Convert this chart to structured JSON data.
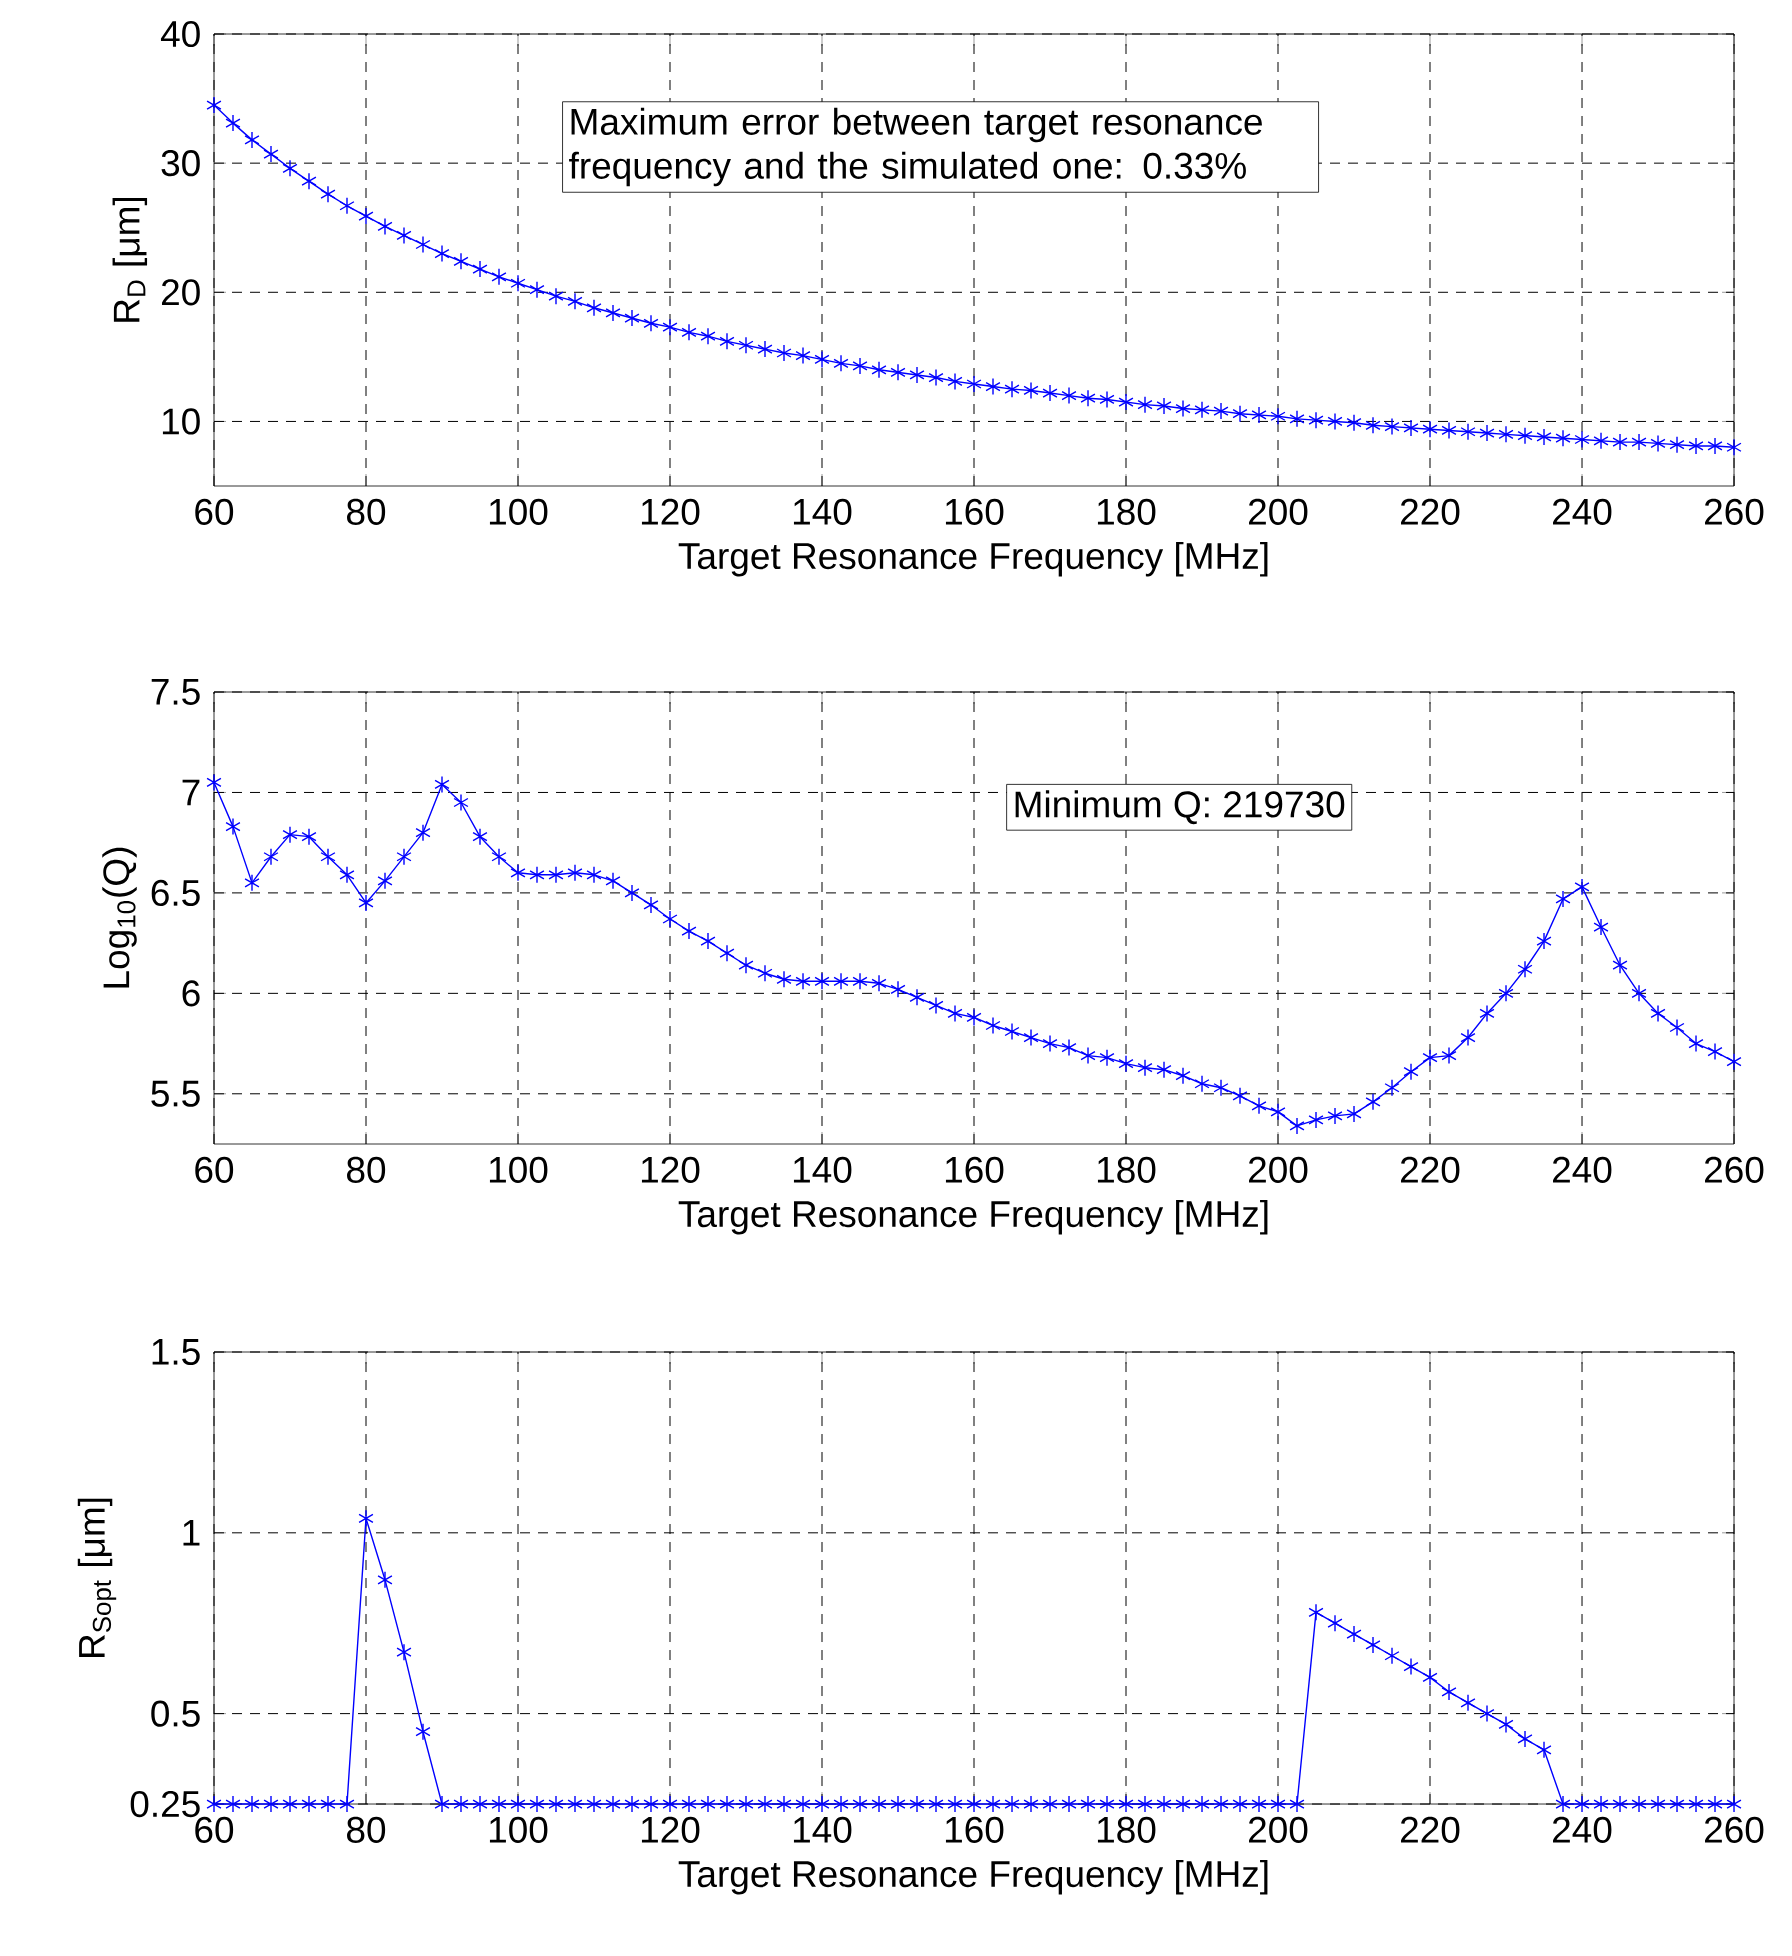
{
  "chart_data": [
    {
      "type": "line",
      "ylabel": "R$_{D}$ [μm]",
      "xlabel": "Target Resonance Frequency [MHz]",
      "annotations": [
        "Maximum error between target resonance frequency and the simulated one: 0.33%"
      ],
      "xlim": [
        60,
        260
      ],
      "xticks": [
        60,
        80,
        100,
        120,
        140,
        160,
        180,
        200,
        220,
        240,
        260
      ],
      "ylim": [
        5,
        40
      ],
      "yticks": [
        10,
        20,
        30,
        40
      ],
      "grid": true,
      "marker": "cross",
      "line_style": "solid",
      "x": [
        60,
        62.5,
        65,
        67.5,
        70,
        72.5,
        75,
        77.5,
        80,
        82.5,
        85,
        87.5,
        90,
        92.5,
        95,
        97.5,
        100,
        102.5,
        105,
        107.5,
        110,
        112.5,
        115,
        117.5,
        120,
        122.5,
        125,
        127.5,
        130,
        132.5,
        135,
        137.5,
        140,
        142.5,
        145,
        147.5,
        150,
        152.5,
        155,
        157.5,
        160,
        162.5,
        165,
        167.5,
        170,
        172.5,
        175,
        177.5,
        180,
        182.5,
        185,
        187.5,
        190,
        192.5,
        195,
        197.5,
        200,
        202.5,
        205,
        207.5,
        210,
        212.5,
        215,
        217.5,
        220,
        222.5,
        225,
        227.5,
        230,
        232.5,
        235,
        237.5,
        240,
        242.5,
        245,
        247.5,
        250,
        252.5,
        255,
        257.5,
        260
      ],
      "series": [
        {
          "color": "#0000ff",
          "values": [
            34.5,
            33.1,
            31.8,
            30.7,
            29.6,
            28.6,
            27.6,
            26.7,
            25.9,
            25.1,
            24.4,
            23.7,
            23.0,
            22.4,
            21.8,
            21.2,
            20.7,
            20.2,
            19.7,
            19.3,
            18.8,
            18.4,
            18.0,
            17.6,
            17.3,
            16.9,
            16.6,
            16.2,
            15.9,
            15.6,
            15.3,
            15.1,
            14.8,
            14.5,
            14.3,
            14.0,
            13.8,
            13.6,
            13.4,
            13.1,
            12.9,
            12.7,
            12.5,
            12.4,
            12.2,
            12.0,
            11.8,
            11.7,
            11.5,
            11.3,
            11.2,
            11.0,
            10.9,
            10.8,
            10.6,
            10.5,
            10.4,
            10.2,
            10.1,
            10.0,
            9.9,
            9.7,
            9.6,
            9.5,
            9.4,
            9.3,
            9.2,
            9.1,
            9.0,
            8.9,
            8.8,
            8.7,
            8.6,
            8.5,
            8.4,
            8.4,
            8.3,
            8.2,
            8.1,
            8.1,
            8.0
          ]
        }
      ]
    },
    {
      "type": "line",
      "ylabel": "Log$_{10}$(Q)",
      "xlabel": "Target Resonance Frequency [MHz]",
      "annotations": [
        "Minimum Q: 219730"
      ],
      "xlim": [
        60,
        260
      ],
      "xticks": [
        60,
        80,
        100,
        120,
        140,
        160,
        180,
        200,
        220,
        240,
        260
      ],
      "ylim": [
        5.25,
        7.5
      ],
      "yticks": [
        5.5,
        6,
        6.5,
        7,
        7.5
      ],
      "grid": true,
      "marker": "cross",
      "line_style": "solid",
      "x": [
        60,
        62.5,
        65,
        67.5,
        70,
        72.5,
        75,
        77.5,
        80,
        82.5,
        85,
        87.5,
        90,
        92.5,
        95,
        97.5,
        100,
        102.5,
        105,
        107.5,
        110,
        112.5,
        115,
        117.5,
        120,
        122.5,
        125,
        127.5,
        130,
        132.5,
        135,
        137.5,
        140,
        142.5,
        145,
        147.5,
        150,
        152.5,
        155,
        157.5,
        160,
        162.5,
        165,
        167.5,
        170,
        172.5,
        175,
        177.5,
        180,
        182.5,
        185,
        187.5,
        190,
        192.5,
        195,
        197.5,
        200,
        202.5,
        205,
        207.5,
        210,
        212.5,
        215,
        217.5,
        220,
        222.5,
        225,
        227.5,
        230,
        232.5,
        235,
        237.5,
        240,
        242.5,
        245,
        247.5,
        250,
        252.5,
        255,
        257.5,
        260
      ],
      "series": [
        {
          "color": "#0000ff",
          "values": [
            7.05,
            6.83,
            6.55,
            6.68,
            6.79,
            6.78,
            6.68,
            6.59,
            6.45,
            6.56,
            6.68,
            6.8,
            7.04,
            6.95,
            6.78,
            6.68,
            6.6,
            6.59,
            6.59,
            6.6,
            6.59,
            6.56,
            6.5,
            6.44,
            6.37,
            6.31,
            6.26,
            6.2,
            6.14,
            6.1,
            6.07,
            6.06,
            6.06,
            6.06,
            6.06,
            6.05,
            6.02,
            5.98,
            5.94,
            5.9,
            5.88,
            5.84,
            5.81,
            5.78,
            5.75,
            5.73,
            5.69,
            5.68,
            5.65,
            5.63,
            5.62,
            5.59,
            5.55,
            5.53,
            5.49,
            5.44,
            5.41,
            5.34,
            5.37,
            5.39,
            5.4,
            5.46,
            5.53,
            5.61,
            5.68,
            5.69,
            5.78,
            5.9,
            6.0,
            6.12,
            6.26,
            6.47,
            6.53,
            6.33,
            6.14,
            6.0,
            5.9,
            5.83,
            5.75,
            5.71,
            5.66
          ]
        }
      ]
    },
    {
      "type": "line",
      "ylabel": "R$_{Sopt}$ [μm]",
      "xlabel": "Target Resonance Frequency [MHz]",
      "xlim": [
        60,
        260
      ],
      "xticks": [
        60,
        80,
        100,
        120,
        140,
        160,
        180,
        200,
        220,
        240,
        260
      ],
      "ylim": [
        0.25,
        1.5
      ],
      "yticks": [
        0.25,
        0.5,
        1,
        1.5
      ],
      "grid": true,
      "marker": "cross",
      "line_style": "solid",
      "x": [
        60,
        62.5,
        65,
        67.5,
        70,
        72.5,
        75,
        77.5,
        80,
        82.5,
        85,
        87.5,
        90,
        92.5,
        95,
        97.5,
        100,
        102.5,
        105,
        107.5,
        110,
        112.5,
        115,
        117.5,
        120,
        122.5,
        125,
        127.5,
        130,
        132.5,
        135,
        137.5,
        140,
        142.5,
        145,
        147.5,
        150,
        152.5,
        155,
        157.5,
        160,
        162.5,
        165,
        167.5,
        170,
        172.5,
        175,
        177.5,
        180,
        182.5,
        185,
        187.5,
        190,
        192.5,
        195,
        197.5,
        200,
        202.5,
        205,
        207.5,
        210,
        212.5,
        215,
        217.5,
        220,
        222.5,
        225,
        227.5,
        230,
        232.5,
        235,
        237.5,
        240,
        242.5,
        245,
        247.5,
        250,
        252.5,
        255,
        257.5,
        260
      ],
      "series": [
        {
          "color": "#0000ff",
          "values": [
            0.25,
            0.25,
            0.25,
            0.25,
            0.25,
            0.25,
            0.25,
            0.25,
            1.04,
            0.87,
            0.67,
            0.45,
            0.25,
            0.25,
            0.25,
            0.25,
            0.25,
            0.25,
            0.25,
            0.25,
            0.25,
            0.25,
            0.25,
            0.25,
            0.25,
            0.25,
            0.25,
            0.25,
            0.25,
            0.25,
            0.25,
            0.25,
            0.25,
            0.25,
            0.25,
            0.25,
            0.25,
            0.25,
            0.25,
            0.25,
            0.25,
            0.25,
            0.25,
            0.25,
            0.25,
            0.25,
            0.25,
            0.25,
            0.25,
            0.25,
            0.25,
            0.25,
            0.25,
            0.25,
            0.25,
            0.25,
            0.25,
            0.25,
            0.78,
            0.75,
            0.72,
            0.69,
            0.66,
            0.63,
            0.6,
            0.56,
            0.53,
            0.5,
            0.47,
            0.43,
            0.4,
            0.25,
            0.25,
            0.25,
            0.25,
            0.25,
            0.25,
            0.25,
            0.25,
            0.25,
            0.25
          ]
        }
      ]
    }
  ]
}
